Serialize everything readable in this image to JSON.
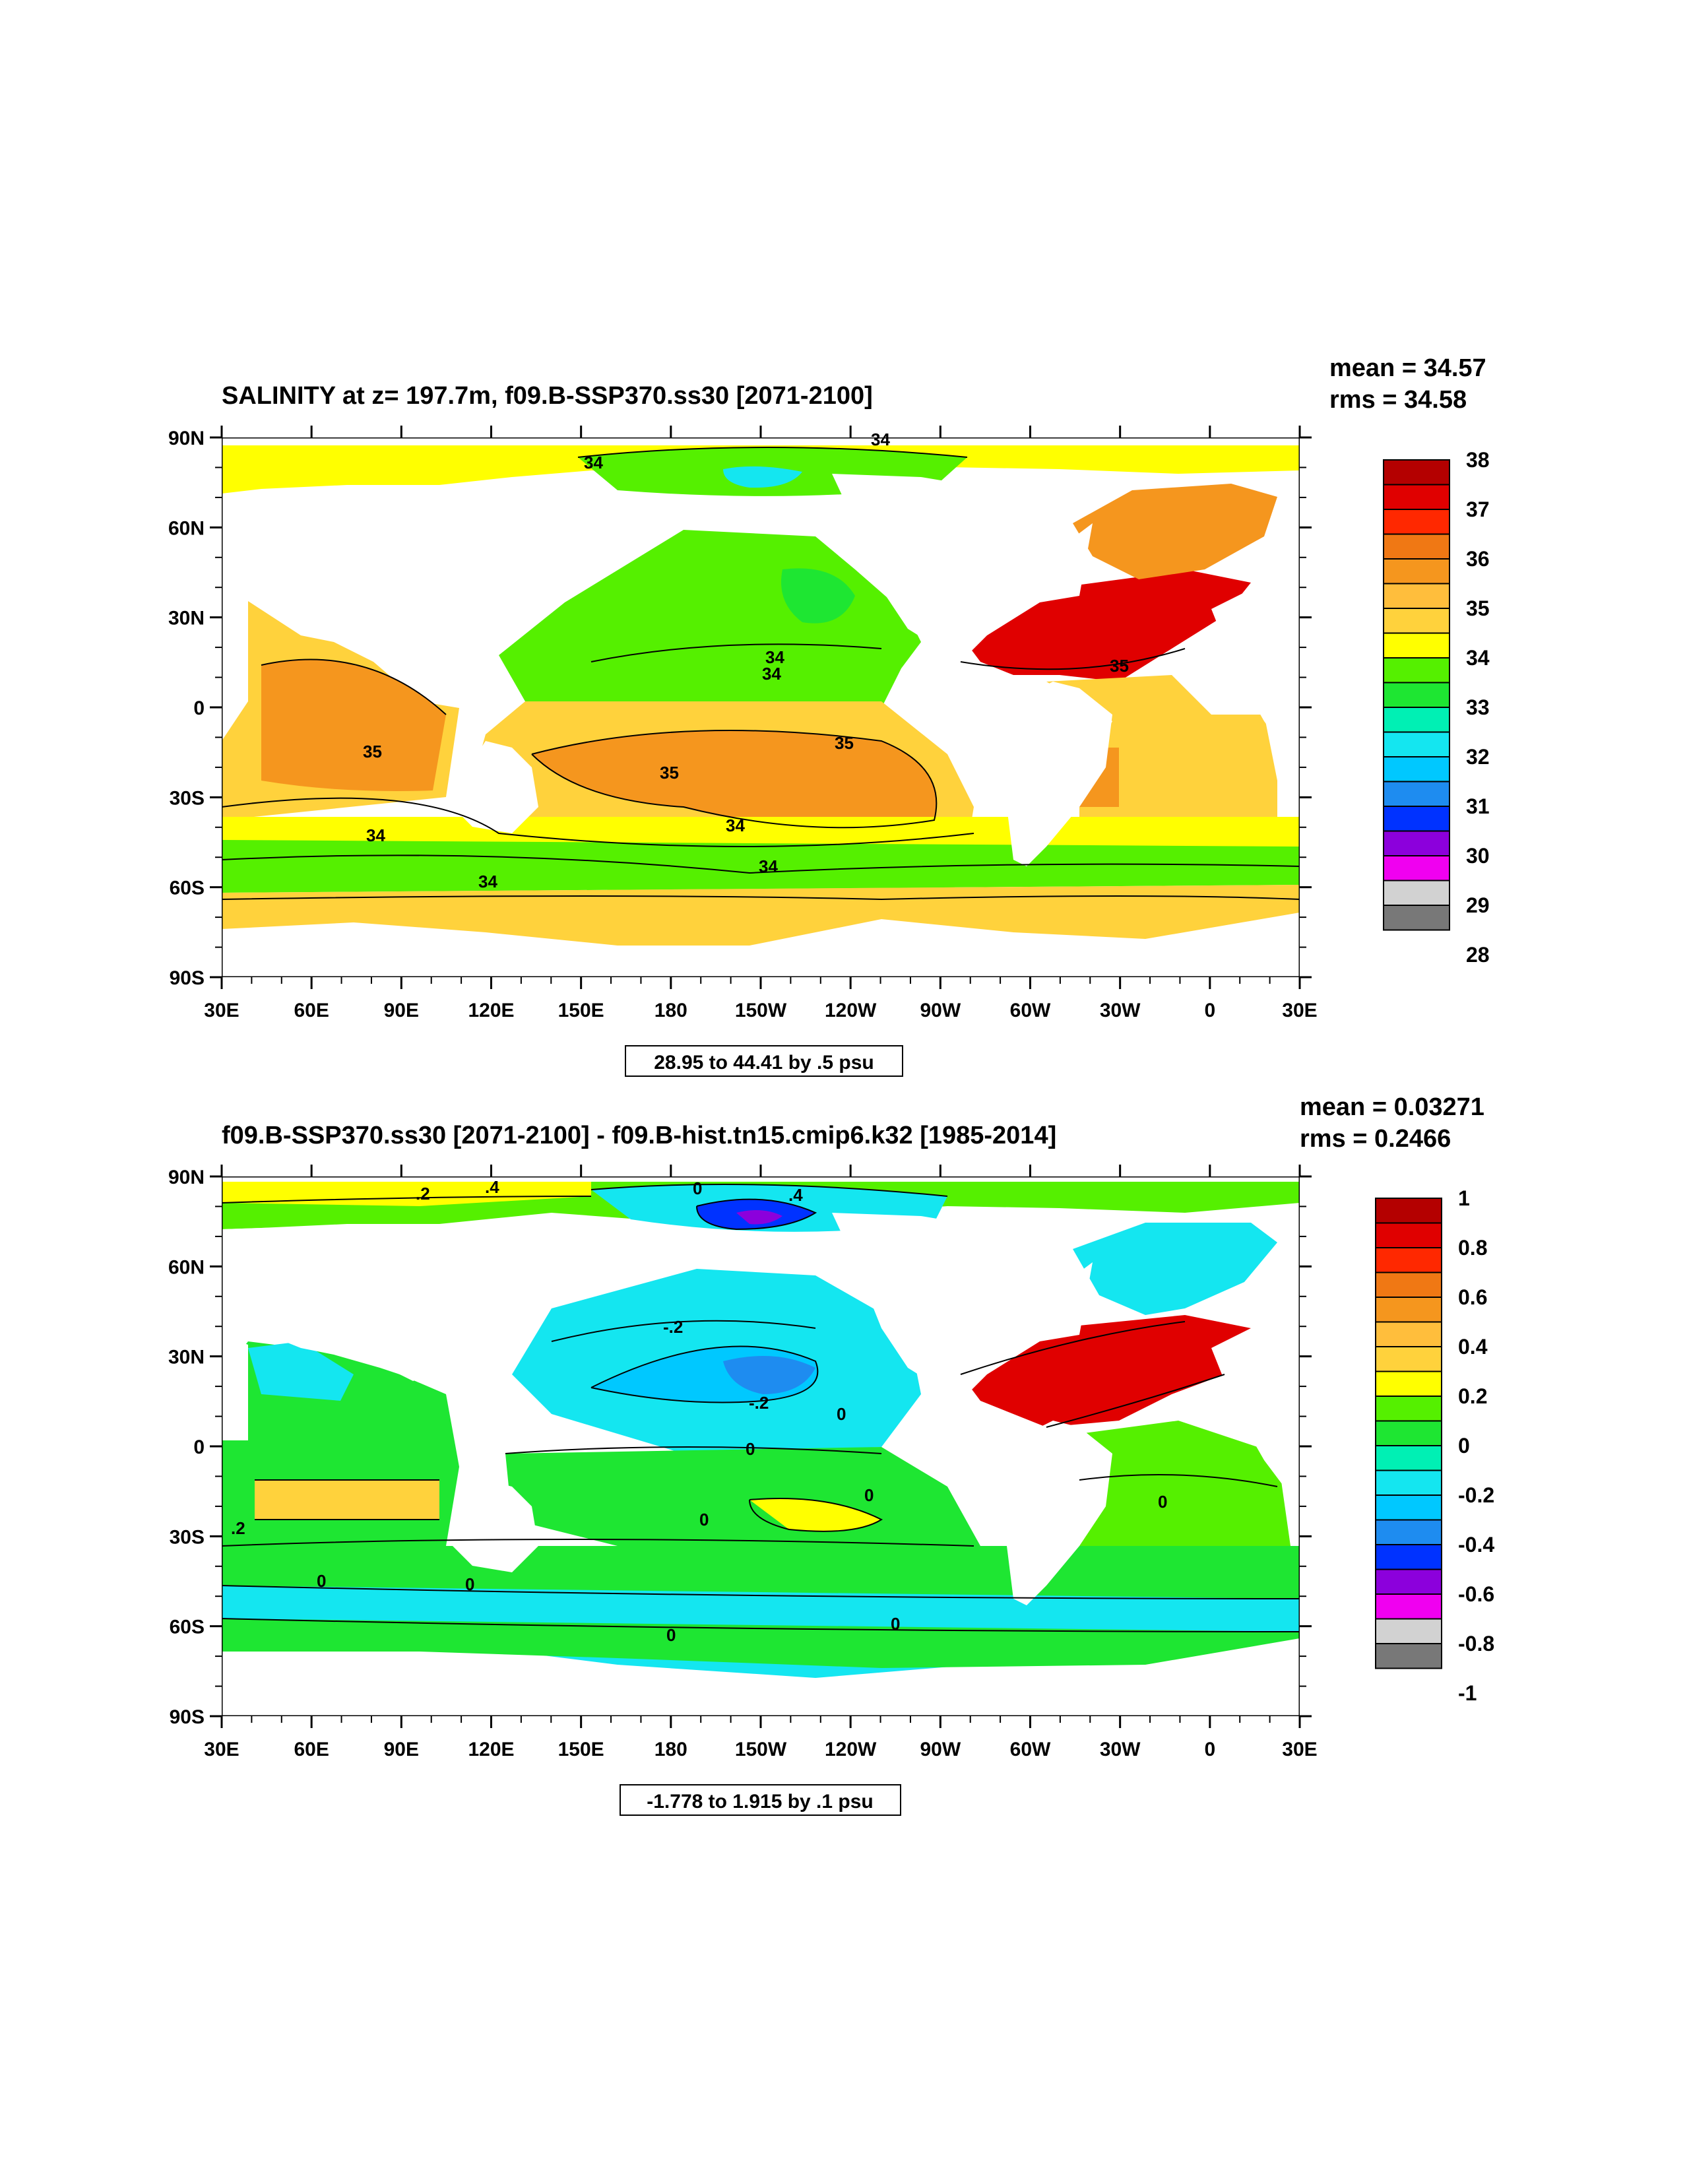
{
  "panels": [
    {
      "title": "SALINITY at z= 197.7m, f09.B-SSP370.ss30 [2071-2100]",
      "stats": {
        "mean": "mean = 34.57",
        "rms": "rms = 34.58"
      },
      "contour_info": "28.95 to 44.41 by .5 psu",
      "colorbar_labels": [
        "38",
        "37",
        "36",
        "35",
        "34",
        "33",
        "32",
        "31",
        "30",
        "29",
        "28"
      ],
      "contour_labels": [
        "34",
        "34",
        "34",
        "34",
        "35",
        "35",
        "35",
        "35",
        "34",
        "34",
        "34",
        "34"
      ],
      "colors": [
        "#b40000",
        "#e00000",
        "#ff2800",
        "#f07814",
        "#f5961e",
        "#ffbe3c",
        "#ffd23c",
        "#ffff00",
        "#55f000",
        "#1ee632",
        "#00f0b4",
        "#14e6f0",
        "#00c8ff",
        "#1e8cf0",
        "#0032ff",
        "#8c00dc",
        "#f000f0",
        "#d2d2d2",
        "#787878"
      ]
    },
    {
      "title": "f09.B-SSP370.ss30 [2071-2100] - f09.B-hist.tn15.cmip6.k32 [1985-2014]",
      "stats": {
        "mean": "mean = 0.03271",
        "rms": "rms = 0.2466"
      },
      "contour_info": "-1.778 to 1.915 by .1 psu",
      "colorbar_labels": [
        "1",
        "0.8",
        "0.6",
        "0.4",
        "0.2",
        "0",
        "-0.2",
        "-0.4",
        "-0.6",
        "-0.8",
        "-1"
      ],
      "contour_labels": [
        ".2",
        ".4",
        "0",
        ".4",
        "-.2",
        "-.2",
        "0",
        "0",
        "0",
        "0",
        "0",
        "0",
        "0",
        ".2",
        "0",
        "0"
      ],
      "colors": [
        "#b40000",
        "#e00000",
        "#ff2800",
        "#f07814",
        "#f5961e",
        "#ffbe3c",
        "#ffd23c",
        "#ffff00",
        "#55f000",
        "#1ee632",
        "#00f0b4",
        "#14e6f0",
        "#00c8ff",
        "#1e8cf0",
        "#0032ff",
        "#8c00dc",
        "#f000f0",
        "#d2d2d2",
        "#787878"
      ]
    }
  ],
  "axes": {
    "lat_labels": [
      "90N",
      "60N",
      "30N",
      "0",
      "30S",
      "60S",
      "90S"
    ],
    "lon_labels": [
      "30E",
      "60E",
      "90E",
      "120E",
      "150E",
      "180",
      "150W",
      "120W",
      "90W",
      "60W",
      "30W",
      "0",
      "30E"
    ]
  }
}
